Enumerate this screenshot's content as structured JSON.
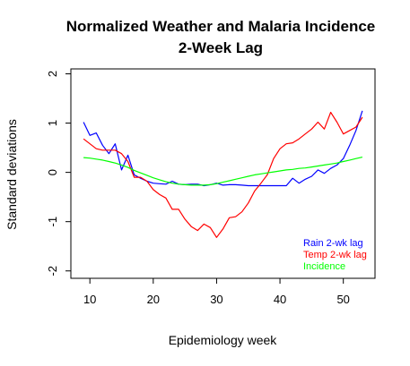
{
  "chart_data": {
    "type": "line",
    "title": "Normalized Weather and Malaria Incidence",
    "subtitle": "2-Week Lag",
    "xlabel": "Epidemiology week",
    "ylabel": "Standard deviations",
    "xlim": [
      7,
      55
    ],
    "ylim": [
      -2.15,
      2.1
    ],
    "xticks": [
      10,
      20,
      30,
      40,
      50
    ],
    "xtick_labels": [
      "10",
      "20",
      "30",
      "40",
      "50"
    ],
    "yticks": [
      -2,
      -1,
      0,
      1,
      2
    ],
    "ytick_labels": [
      "-2",
      "-1",
      "0",
      "1",
      "2"
    ],
    "grid": false,
    "legend_position": "bottom-right",
    "series": [
      {
        "name": "Rain 2-wk lag",
        "color": "#0000ff",
        "x": [
          9,
          10,
          11,
          12,
          13,
          14,
          15,
          16,
          17,
          18,
          19,
          20,
          21,
          22,
          23,
          24,
          25,
          26,
          27,
          28,
          29,
          30,
          31,
          32,
          33,
          34,
          35,
          36,
          37,
          38,
          39,
          40,
          41,
          42,
          43,
          44,
          45,
          46,
          47,
          48,
          49,
          50,
          51,
          52,
          53
        ],
        "y": [
          1.02,
          0.75,
          0.8,
          0.55,
          0.38,
          0.58,
          0.05,
          0.35,
          -0.05,
          -0.12,
          -0.18,
          -0.22,
          -0.23,
          -0.24,
          -0.18,
          -0.24,
          -0.25,
          -0.24,
          -0.24,
          -0.27,
          -0.25,
          -0.22,
          -0.26,
          -0.25,
          -0.25,
          -0.26,
          -0.27,
          -0.27,
          -0.27,
          -0.27,
          -0.27,
          -0.27,
          -0.27,
          -0.12,
          -0.22,
          -0.14,
          -0.08,
          0.05,
          -0.02,
          0.08,
          0.15,
          0.28,
          0.55,
          0.85,
          1.25
        ]
      },
      {
        "name": "Temp 2-wk lag",
        "color": "#ff0000",
        "x": [
          9,
          10,
          11,
          12,
          13,
          14,
          15,
          16,
          17,
          18,
          19,
          20,
          21,
          22,
          23,
          24,
          25,
          26,
          27,
          28,
          29,
          30,
          31,
          32,
          33,
          34,
          35,
          36,
          37,
          38,
          39,
          40,
          41,
          42,
          43,
          44,
          45,
          46,
          47,
          48,
          49,
          50,
          51,
          52,
          53
        ],
        "y": [
          0.68,
          0.58,
          0.48,
          0.45,
          0.45,
          0.45,
          0.38,
          0.22,
          -0.1,
          -0.1,
          -0.18,
          -0.35,
          -0.45,
          -0.52,
          -0.75,
          -0.75,
          -0.95,
          -1.1,
          -1.18,
          -1.05,
          -1.12,
          -1.32,
          -1.15,
          -0.92,
          -0.9,
          -0.8,
          -0.62,
          -0.38,
          -0.22,
          -0.05,
          0.28,
          0.48,
          0.58,
          0.6,
          0.68,
          0.78,
          0.88,
          1.02,
          0.88,
          1.22,
          1.02,
          0.78,
          0.85,
          0.92,
          1.12
        ]
      },
      {
        "name": "Incidence",
        "color": "#00ff00",
        "x": [
          9,
          10,
          11,
          12,
          13,
          14,
          15,
          16,
          17,
          18,
          19,
          20,
          21,
          22,
          23,
          24,
          25,
          26,
          27,
          28,
          29,
          30,
          31,
          32,
          33,
          34,
          35,
          36,
          37,
          38,
          39,
          40,
          41,
          42,
          43,
          44,
          45,
          46,
          47,
          48,
          49,
          50,
          51,
          52,
          53
        ],
        "y": [
          0.3,
          0.29,
          0.27,
          0.25,
          0.22,
          0.19,
          0.15,
          0.1,
          0.04,
          -0.01,
          -0.06,
          -0.11,
          -0.15,
          -0.19,
          -0.22,
          -0.24,
          -0.25,
          -0.26,
          -0.26,
          -0.26,
          -0.25,
          -0.23,
          -0.2,
          -0.17,
          -0.14,
          -0.11,
          -0.08,
          -0.05,
          -0.03,
          -0.01,
          0.01,
          0.03,
          0.05,
          0.06,
          0.08,
          0.09,
          0.11,
          0.13,
          0.15,
          0.17,
          0.19,
          0.22,
          0.25,
          0.28,
          0.31
        ]
      }
    ]
  }
}
